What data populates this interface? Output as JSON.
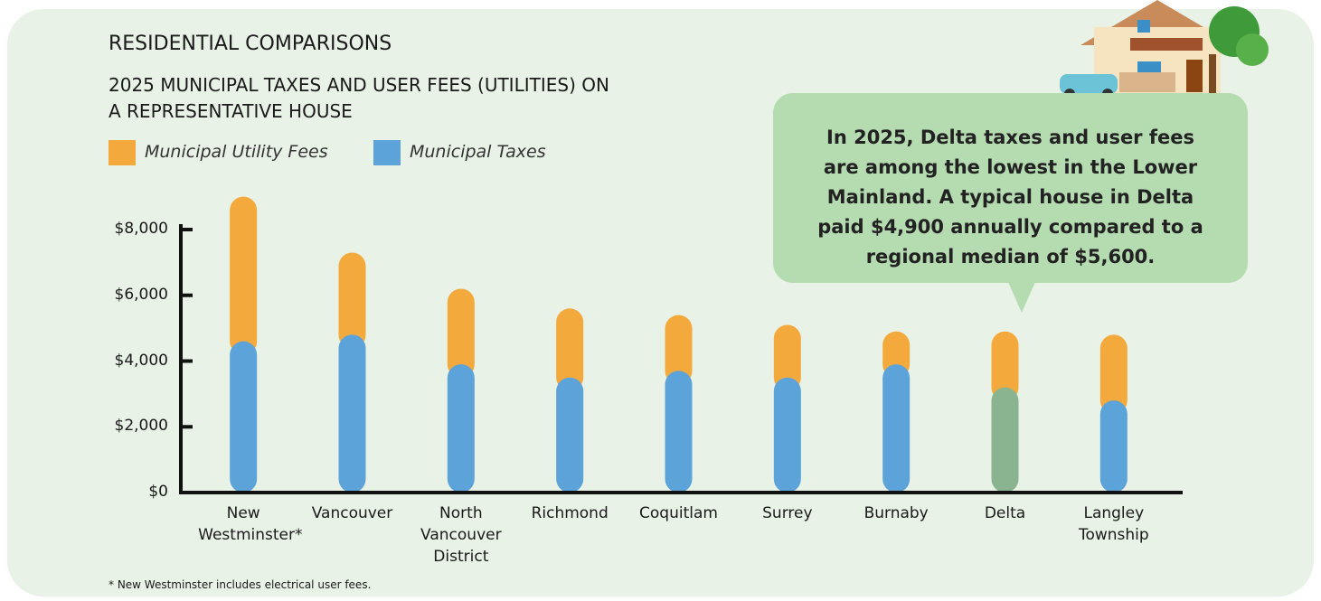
{
  "chart_data": {
    "type": "stacked-bar",
    "title": "RESIDENTIAL COMPARISONS",
    "subtitle": "2025 MUNICIPAL TAXES AND USER FEES (UTILITIES) ON A REPRESENTATIVE HOUSE",
    "categories": [
      "New Westminster*",
      "Vancouver",
      "North Vancouver District",
      "Richmond",
      "Coquitlam",
      "Surrey",
      "Burnaby",
      "Delta",
      "Langley Township"
    ],
    "series": [
      {
        "name": "Municipal Utility Fees",
        "color": "#f4a93c",
        "values": [
          4400,
          2500,
          2300,
          2100,
          1700,
          1600,
          1000,
          1700,
          2000
        ]
      },
      {
        "name": "Municipal Taxes",
        "color": "#5ba3d9",
        "colors": [
          "#5ba3d9",
          "#5ba3d9",
          "#5ba3d9",
          "#5ba3d9",
          "#5ba3d9",
          "#5ba3d9",
          "#5ba3d9",
          "#8ab38f",
          "#5ba3d9"
        ],
        "values": [
          4600,
          4800,
          3900,
          3500,
          3700,
          3500,
          3900,
          3200,
          2800
        ]
      }
    ],
    "ylim": [
      0,
      8000
    ],
    "yticks": [
      {
        "value": 0,
        "label": "$0"
      },
      {
        "value": 2000,
        "label": "$2,000"
      },
      {
        "value": 4000,
        "label": "$4,000"
      },
      {
        "value": 6000,
        "label": "$6,000"
      },
      {
        "value": 8000,
        "label": "$8,000"
      }
    ],
    "callout": "In 2025, Delta taxes and user fees are among the lowest in the Lower Mainland. A typical house in Delta paid $4,900 annually compared to a regional median of $5,600.",
    "footnote": "* New Westminster includes electrical user fees."
  }
}
